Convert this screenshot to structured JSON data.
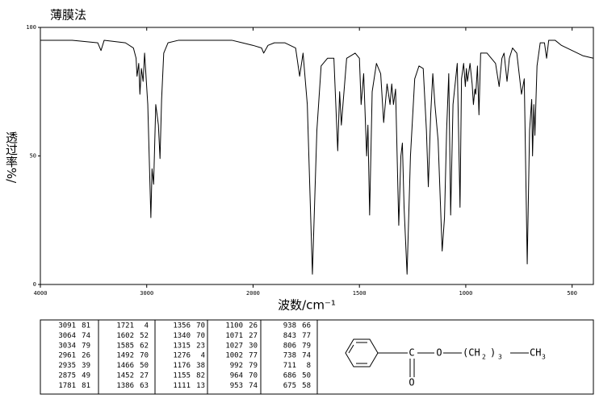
{
  "chart_data": {
    "type": "line",
    "title": "薄膜法",
    "xlabel": "波数/cm⁻¹",
    "ylabel": "透过率%/",
    "xlim": [
      4000,
      400
    ],
    "xbreak": 2000,
    "xticks": [
      4000,
      3000,
      2000,
      1500,
      1000,
      500
    ],
    "ylim": [
      0,
      100
    ],
    "yticks": [
      0,
      50,
      100
    ],
    "series": [
      {
        "color": "#000000",
        "x": [
          4000,
          3700,
          3460,
          3430,
          3400,
          3200,
          3125,
          3100,
          3091,
          3075,
          3064,
          3050,
          3034,
          3020,
          2990,
          2961,
          2950,
          2935,
          2915,
          2890,
          2875,
          2860,
          2840,
          2800,
          2700,
          2500,
          2200,
          2100,
          2000,
          1960,
          1950,
          1930,
          1900,
          1850,
          1800,
          1781,
          1765,
          1745,
          1721,
          1700,
          1680,
          1650,
          1620,
          1602,
          1593,
          1585,
          1560,
          1520,
          1500,
          1492,
          1480,
          1466,
          1460,
          1452,
          1440,
          1420,
          1400,
          1386,
          1370,
          1356,
          1348,
          1340,
          1330,
          1315,
          1305,
          1298,
          1290,
          1276,
          1260,
          1240,
          1220,
          1200,
          1185,
          1176,
          1165,
          1155,
          1145,
          1130,
          1111,
          1100,
          1090,
          1080,
          1071,
          1060,
          1040,
          1027,
          1020,
          1010,
          1002,
          997,
          992,
          980,
          970,
          964,
          957,
          953,
          945,
          938,
          930,
          900,
          880,
          860,
          843,
          830,
          820,
          806,
          795,
          780,
          760,
          738,
          725,
          711,
          700,
          690,
          686,
          680,
          675,
          665,
          650,
          630,
          620,
          610,
          580,
          550,
          500,
          450,
          400
        ],
        "values": [
          95,
          95,
          94,
          91,
          95,
          94,
          92,
          88,
          81,
          86,
          74,
          84,
          79,
          90,
          70,
          26,
          45,
          39,
          70,
          62,
          49,
          72,
          90,
          94,
          95,
          95,
          95,
          94,
          93,
          92,
          90,
          93,
          94,
          94,
          92,
          81,
          90,
          70,
          4,
          60,
          85,
          88,
          88,
          52,
          75,
          62,
          88,
          90,
          88,
          70,
          82,
          50,
          62,
          27,
          75,
          86,
          82,
          63,
          78,
          70,
          78,
          70,
          76,
          23,
          50,
          55,
          30,
          4,
          50,
          80,
          85,
          84,
          60,
          38,
          66,
          82,
          70,
          56,
          13,
          26,
          60,
          82,
          27,
          70,
          86,
          30,
          80,
          86,
          77,
          84,
          79,
          86,
          78,
          70,
          76,
          74,
          85,
          66,
          90,
          90,
          88,
          86,
          77,
          88,
          90,
          79,
          88,
          92,
          90,
          74,
          80,
          8,
          60,
          72,
          50,
          70,
          58,
          85,
          94,
          94,
          88,
          95,
          95,
          93,
          91,
          89,
          88
        ]
      }
    ],
    "peak_table": [
      [
        [
          3091,
          81
        ],
        [
          3064,
          74
        ],
        [
          3034,
          79
        ],
        [
          2961,
          26
        ],
        [
          2935,
          39
        ],
        [
          2875,
          49
        ],
        [
          1781,
          81
        ]
      ],
      [
        [
          1721,
          4
        ],
        [
          1602,
          52
        ],
        [
          1585,
          62
        ],
        [
          1492,
          70
        ],
        [
          1466,
          50
        ],
        [
          1452,
          27
        ],
        [
          1386,
          63
        ]
      ],
      [
        [
          1356,
          70
        ],
        [
          1340,
          70
        ],
        [
          1315,
          23
        ],
        [
          1276,
          4
        ],
        [
          1176,
          38
        ],
        [
          1155,
          82
        ],
        [
          1111,
          13
        ]
      ],
      [
        [
          1100,
          26
        ],
        [
          1071,
          27
        ],
        [
          1027,
          30
        ],
        [
          1002,
          77
        ],
        [
          992,
          79
        ],
        [
          964,
          70
        ],
        [
          953,
          74
        ]
      ],
      [
        [
          938,
          66
        ],
        [
          843,
          77
        ],
        [
          806,
          79
        ],
        [
          738,
          74
        ],
        [
          711,
          8
        ],
        [
          686,
          50
        ],
        [
          675,
          58
        ]
      ]
    ],
    "structure": {
      "carbonyl_c": "C",
      "carbonyl_o": "O",
      "ester_o": "O",
      "chain_open": "(CH",
      "chain_h": "2",
      "chain_close": ")",
      "chain_n": "3",
      "terminal": "CH",
      "terminal_h": "3"
    }
  }
}
